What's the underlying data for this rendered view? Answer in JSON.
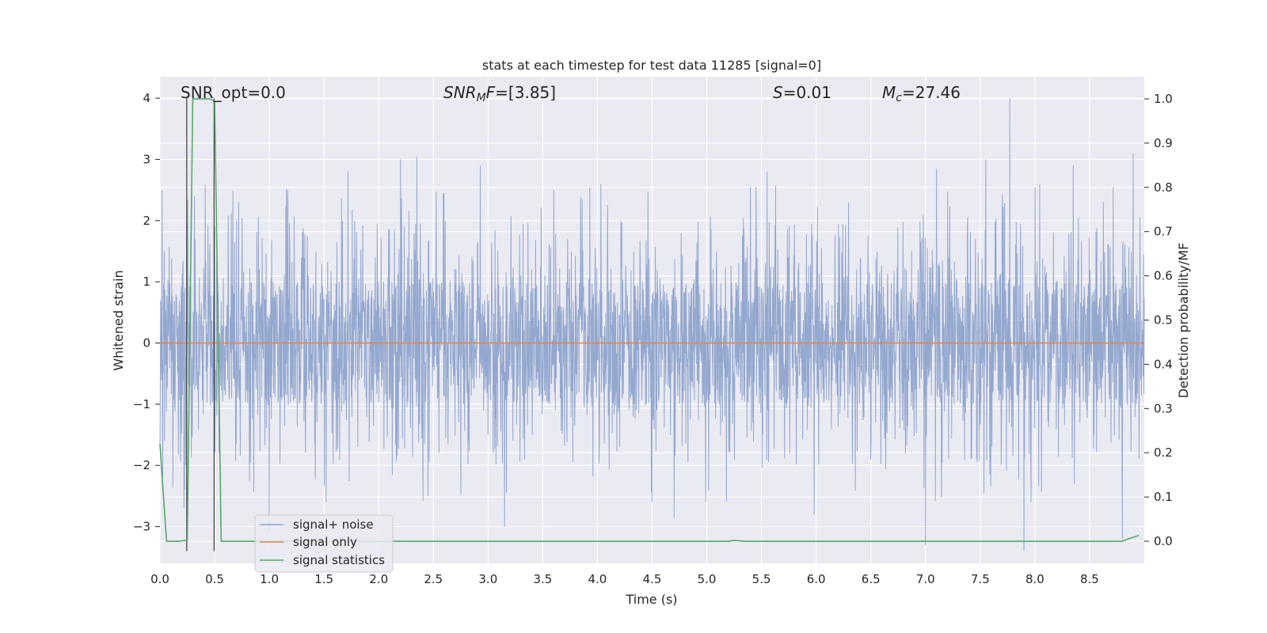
{
  "chart_data": {
    "type": "line",
    "title": "stats at each timestep for test data 11285 [signal=0]",
    "xlabel": "Time (s)",
    "ylabel": "Whitened strain",
    "y2label": "Detection probability/MF",
    "xlim": [
      0.0,
      9.0
    ],
    "ylim": [
      -3.6,
      4.35
    ],
    "y2lim": [
      -0.05,
      1.05
    ],
    "x_ticks": [
      0.0,
      0.5,
      1.0,
      1.5,
      2.0,
      2.5,
      3.0,
      3.5,
      4.0,
      4.5,
      5.0,
      5.5,
      6.0,
      6.5,
      7.0,
      7.5,
      8.0,
      8.5
    ],
    "x_tick_labels": [
      "0.0",
      "0.5",
      "1.0",
      "1.5",
      "2.0",
      "2.5",
      "3.0",
      "3.5",
      "4.0",
      "4.5",
      "5.0",
      "5.5",
      "6.0",
      "6.5",
      "7.0",
      "7.5",
      "8.0",
      "8.5"
    ],
    "y_ticks": [
      -3,
      -2,
      -1,
      0,
      1,
      2,
      3,
      4
    ],
    "y_tick_labels": [
      "−3",
      "−2",
      "−1",
      "0",
      "1",
      "2",
      "3",
      "4"
    ],
    "y2_ticks": [
      0.0,
      0.1,
      0.2,
      0.3,
      0.4,
      0.5,
      0.6,
      0.7,
      0.8,
      0.9,
      1.0
    ],
    "y2_tick_labels": [
      "0.0",
      "0.1",
      "0.2",
      "0.3",
      "0.4",
      "0.5",
      "0.6",
      "0.7",
      "0.8",
      "0.9",
      "1.0"
    ],
    "grid": true,
    "legend_position": "lower-left",
    "annotations": {
      "snr_opt": "SNR_opt=0.0",
      "snr_mf_main": "SNR",
      "snr_mf_sub": "M",
      "snr_mf_rest": "F",
      "snr_mf_value": "=[3.85]",
      "s_symbol": "S",
      "s_value": "=0.01",
      "mc_main": "M",
      "mc_sub": "c",
      "mc_value": "=27.46"
    },
    "markers": [
      {
        "name": "window-start",
        "x": 0.245,
        "y_from": -3.4,
        "y_to": 4.0
      },
      {
        "name": "window-end",
        "x": 0.495,
        "y_from": -3.4,
        "y_to": 4.0
      }
    ],
    "series": [
      {
        "name": "signal+ noise",
        "axis": "left",
        "color": "#8fa4cc",
        "style": "noise",
        "typical_band": [
          -1.0,
          1.0
        ],
        "envelope": [
          -2.0,
          2.0
        ],
        "extremes": [
          {
            "x": 0.02,
            "y": 2.5
          },
          {
            "x": 0.22,
            "y": -2.7
          },
          {
            "x": 0.5,
            "y": 1.9
          },
          {
            "x": 0.72,
            "y": 2.3
          },
          {
            "x": 1.0,
            "y": -3.1
          },
          {
            "x": 1.52,
            "y": -2.6
          },
          {
            "x": 1.72,
            "y": 2.8
          },
          {
            "x": 2.2,
            "y": 3.0
          },
          {
            "x": 2.35,
            "y": 3.05
          },
          {
            "x": 2.93,
            "y": 2.9
          },
          {
            "x": 3.15,
            "y": -3.0
          },
          {
            "x": 3.6,
            "y": 2.5
          },
          {
            "x": 4.5,
            "y": -2.6
          },
          {
            "x": 4.7,
            "y": -2.85
          },
          {
            "x": 5.55,
            "y": 2.8
          },
          {
            "x": 5.98,
            "y": -2.8
          },
          {
            "x": 7.0,
            "y": -3.3
          },
          {
            "x": 7.1,
            "y": 2.85
          },
          {
            "x": 7.55,
            "y": 3.0
          },
          {
            "x": 7.77,
            "y": 4.0
          },
          {
            "x": 7.9,
            "y": -3.4
          },
          {
            "x": 8.35,
            "y": 2.9
          },
          {
            "x": 8.8,
            "y": -3.2
          },
          {
            "x": 8.9,
            "y": 3.1
          }
        ]
      },
      {
        "name": "signal only",
        "axis": "left",
        "color": "#dd8452",
        "x": [
          0.0,
          9.0
        ],
        "y": [
          0.0,
          0.0
        ]
      },
      {
        "name": "signal statistics",
        "axis": "right",
        "color": "#55a868",
        "x": [
          0.0,
          0.06,
          0.18,
          0.25,
          0.3,
          0.46,
          0.5,
          0.56,
          5.2,
          5.25,
          5.35,
          8.8,
          8.85,
          8.95
        ],
        "y": [
          0.22,
          0.0,
          0.0,
          0.003,
          1.0,
          1.0,
          0.995,
          0.0,
          0.0,
          0.002,
          0.0,
          0.0,
          0.005,
          0.013
        ]
      }
    ]
  }
}
